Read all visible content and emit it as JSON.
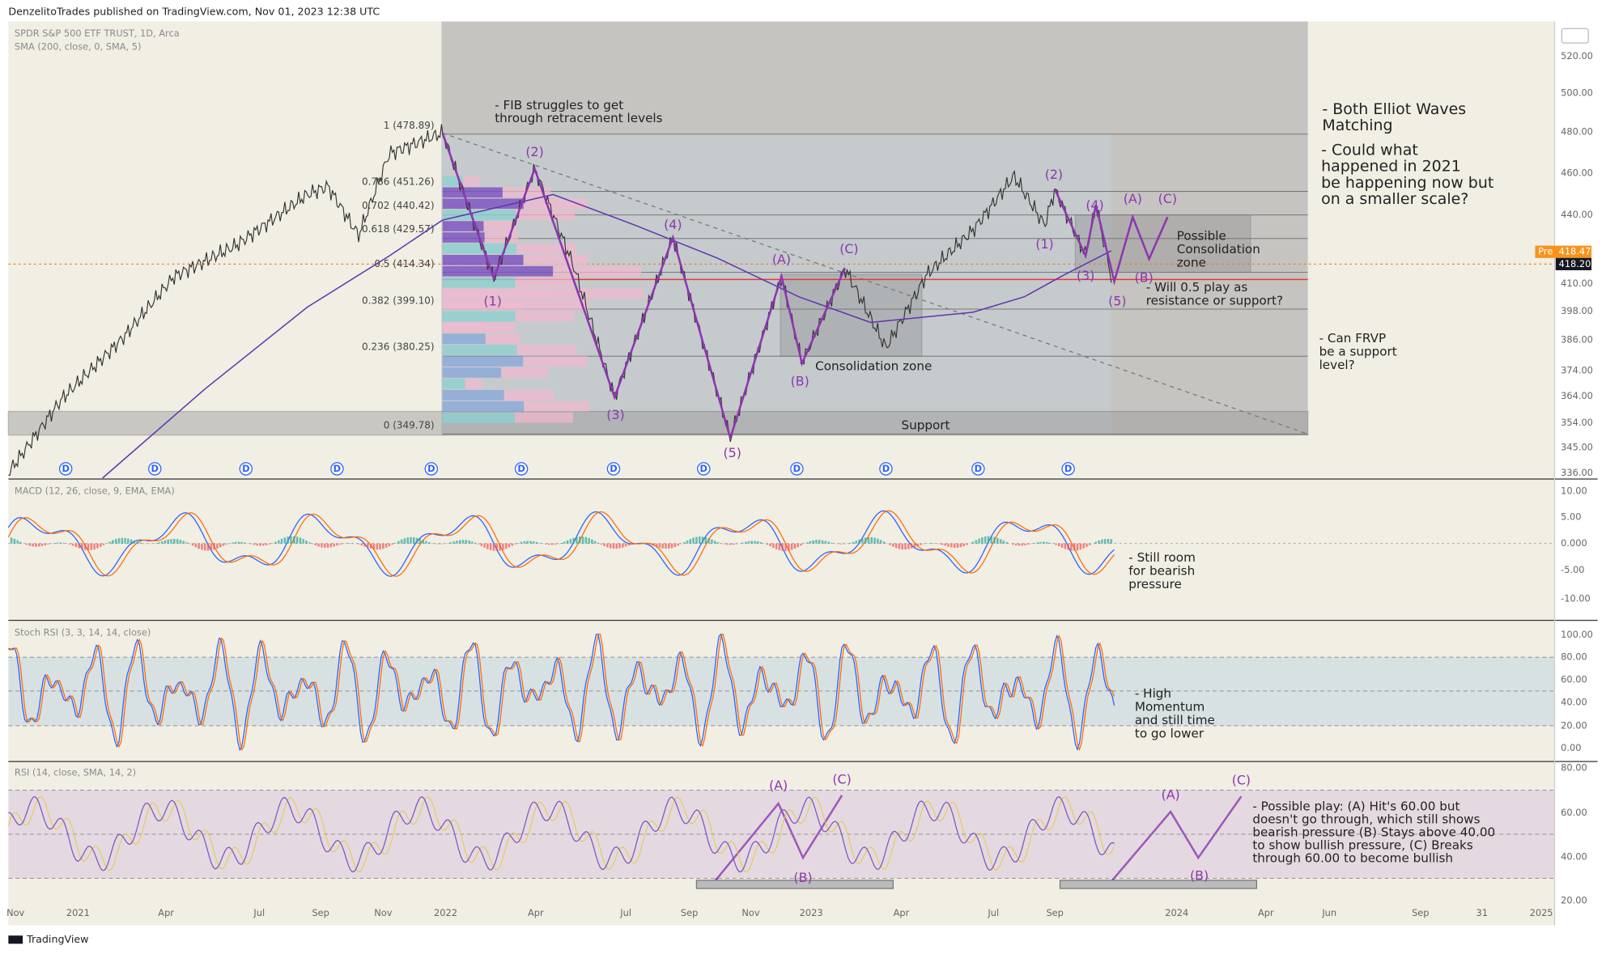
{
  "header": {
    "publisher": "DenzelitoTrades published on TradingView.com, Nov 01, 2023 12:38 UTC"
  },
  "main_pane": {
    "symbol": "SPDR S&P 500 ETF TRUST, 1D, Arca",
    "indicator": "SMA (200, close, 0, SMA, 5)",
    "price_axis": [
      "520.00",
      "500.00",
      "480.00",
      "460.00",
      "440.00",
      "410.00",
      "398.00",
      "386.00",
      "374.00",
      "364.00",
      "354.00",
      "345.00",
      "336.00"
    ],
    "currency": "USD",
    "pre_label": "Pre",
    "pre_price": "418.47",
    "last_price": "418.20",
    "fib_levels": [
      "1 (478.89)",
      "0.786 (451.26)",
      "0.702 (440.42)",
      "0.618 (429.57)",
      "0.5 (414.34)",
      "0.382 (399.10)",
      "0.236 (380.25)",
      "0 (349.78)"
    ],
    "annotations": [
      [
        "- FIB struggles to get",
        "through retracement levels"
      ],
      [
        "- Both Elliot Waves",
        "Matching"
      ],
      [
        "- Could what",
        "happened in 2021",
        "be happening now but",
        "on a smaller scale?"
      ],
      [
        "Possible",
        "Consolidation",
        "zone"
      ],
      [
        "- Will 0.5 play as",
        "resistance or support?"
      ],
      [
        "- Can FRVP",
        "be a support",
        "level?"
      ],
      [
        "Consolidation zone"
      ],
      [
        "Support"
      ]
    ],
    "wave_labels": [
      "(2)",
      "(4)",
      "(1)",
      "(3)",
      "(5)",
      "(A)",
      "(C)",
      "(B)",
      "(2)",
      "(4)",
      "(1)",
      "(3)",
      "(5)",
      "(A)",
      "(C)",
      "(B)"
    ],
    "dividends": [
      "D",
      "D",
      "D",
      "D",
      "D",
      "D",
      "D",
      "D",
      "D",
      "D",
      "D",
      "D"
    ]
  },
  "macd_pane": {
    "title": "MACD (12, 26, close, 9, EMA, EMA)",
    "axis": [
      "10.00",
      "5.00",
      "0.000",
      "-5.00",
      "-10.00"
    ],
    "note": [
      "- Still room",
      "for bearish",
      "pressure"
    ]
  },
  "stoch_pane": {
    "title": "Stoch RSI (3, 3, 14, 14, close)",
    "axis": [
      "100.00",
      "80.00",
      "60.00",
      "40.00",
      "20.00",
      "0.00"
    ],
    "note": [
      "- High",
      "Momentum",
      "and still time",
      "to go lower"
    ]
  },
  "rsi_pane": {
    "title": "RSI (14, close, SMA, 14, 2)",
    "axis": [
      "80.00",
      "60.00",
      "40.00",
      "20.00"
    ],
    "wave_labels": [
      "(A)",
      "(C)",
      "(B)",
      "(A)",
      "(C)",
      "(B)"
    ],
    "note": [
      "- Possible play: (A) Hit's 60.00 but",
      "doesn't go through, which still shows",
      "bearish pressure (B) Stays above 40.00",
      "to show bullish pressure, (C) Breaks",
      "through 60.00 to become bullish"
    ]
  },
  "time_axis": [
    "Nov",
    "2021",
    "Apr",
    "Jul",
    "Sep",
    "Nov",
    "2022",
    "Apr",
    "Jul",
    "Sep",
    "Nov",
    "2023",
    "Apr",
    "Jul",
    "Sep",
    "2024",
    "Apr",
    "Jun",
    "Sep",
    "31",
    "2025"
  ],
  "footer": {
    "brand": "TradingView"
  }
}
